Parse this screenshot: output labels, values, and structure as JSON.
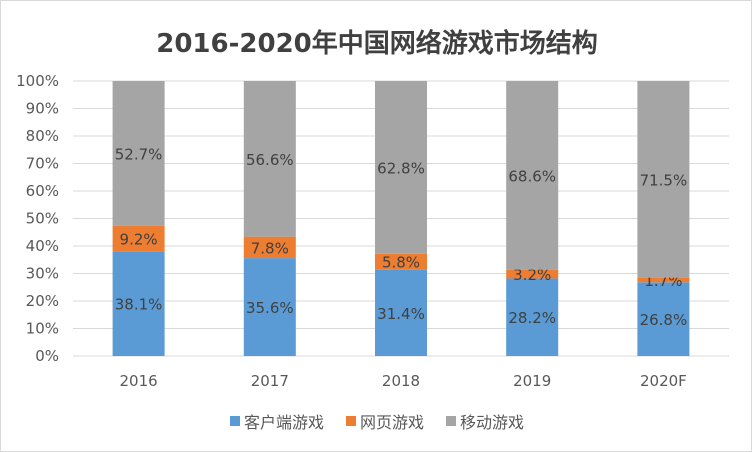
{
  "chart_data": {
    "type": "bar",
    "stacked": true,
    "title": "2016-2020年中国网络游戏市场结构",
    "categories": [
      "2016",
      "2017",
      "2018",
      "2019",
      "2020F"
    ],
    "series": [
      {
        "name": "客户端游戏",
        "color": "#5B9BD5",
        "values": [
          38.1,
          35.6,
          31.4,
          28.2,
          26.8
        ]
      },
      {
        "name": "网页游戏",
        "color": "#ED7D31",
        "values": [
          9.2,
          7.8,
          5.8,
          3.2,
          1.7
        ]
      },
      {
        "name": "移动游戏",
        "color": "#A5A5A5",
        "values": [
          52.7,
          56.6,
          62.8,
          68.6,
          71.5
        ]
      }
    ],
    "data_labels": true,
    "ylim": [
      0,
      100
    ],
    "yticks": [
      "0%",
      "10%",
      "20%",
      "30%",
      "40%",
      "50%",
      "60%",
      "70%",
      "80%",
      "90%",
      "100%"
    ],
    "grid": true,
    "legend": "bottom"
  }
}
